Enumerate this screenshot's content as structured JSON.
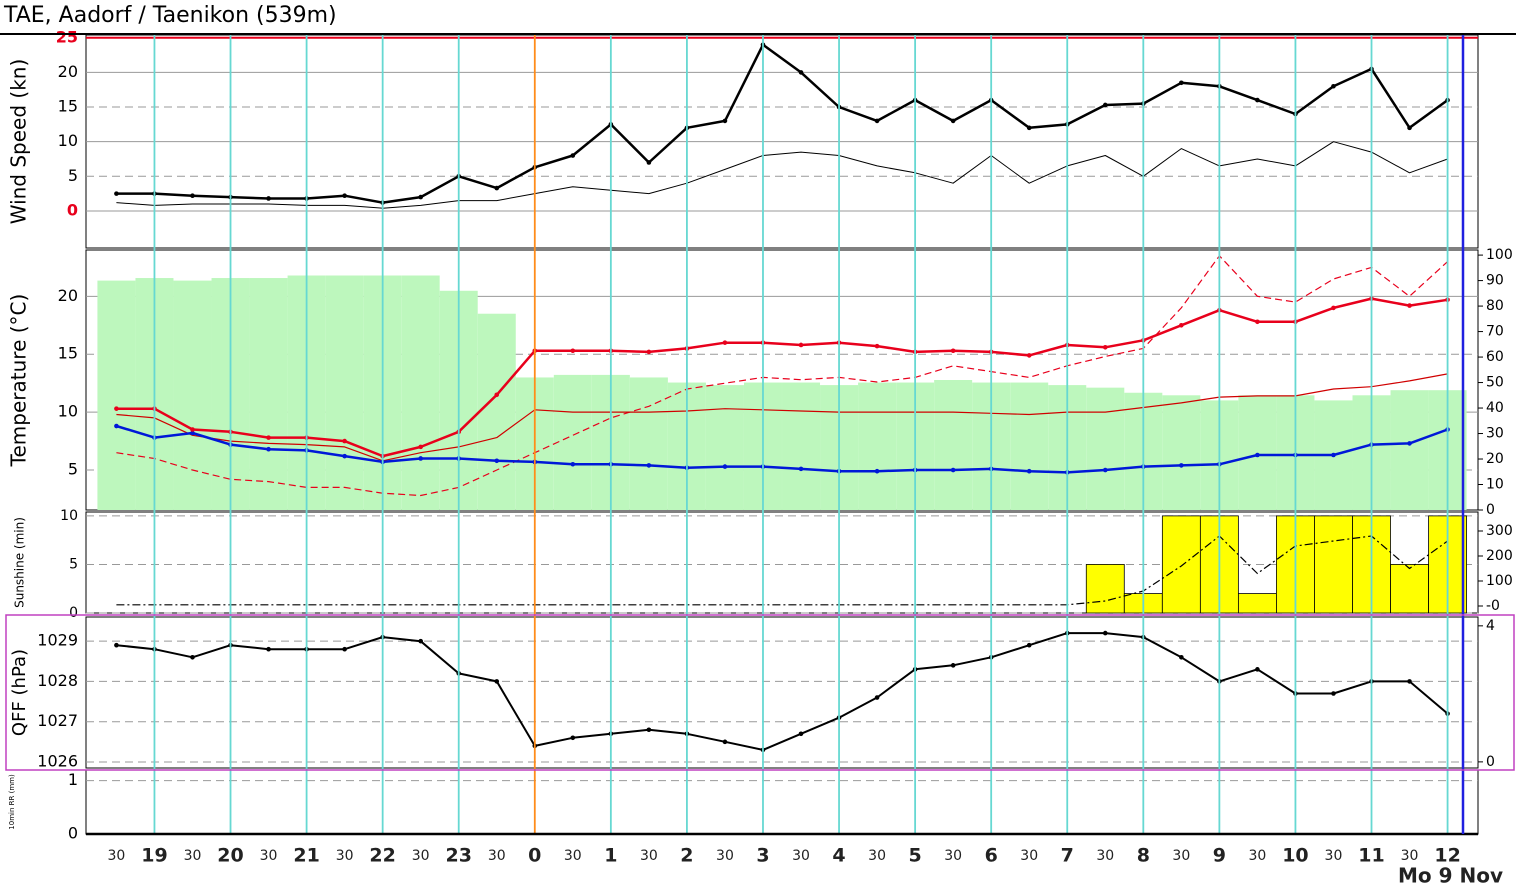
{
  "title": "TAE, Aadorf / Taenikon (539m)",
  "date_label": "Mo 9 Nov",
  "xlim": [
    -5.9,
    12.4
  ],
  "x": [
    -5.5,
    -5,
    -4.5,
    -4,
    -3.5,
    -3,
    -2.5,
    -2,
    -1.5,
    -1,
    -0.5,
    0,
    0.5,
    1,
    1.5,
    2,
    2.5,
    3,
    3.5,
    4,
    4.5,
    5,
    5.5,
    6,
    6.5,
    7,
    7.5,
    8,
    8.5,
    9,
    9.5,
    10,
    10.5,
    11,
    11.5,
    12
  ],
  "xticks": [
    {
      "value": -5.5,
      "label": "30"
    },
    {
      "value": -5,
      "label": "19"
    },
    {
      "value": -4.5,
      "label": "30"
    },
    {
      "value": -4,
      "label": "20"
    },
    {
      "value": -3.5,
      "label": "30"
    },
    {
      "value": -3,
      "label": "21"
    },
    {
      "value": -2.5,
      "label": "30"
    },
    {
      "value": -2,
      "label": "22"
    },
    {
      "value": -1.5,
      "label": "30"
    },
    {
      "value": -1,
      "label": "23"
    },
    {
      "value": -0.5,
      "label": "30"
    },
    0,
    {
      "value": 0.5,
      "label": "30"
    },
    1,
    {
      "value": 1.5,
      "label": "30"
    },
    2,
    {
      "value": 2.5,
      "label": "30"
    },
    3,
    {
      "value": 3.5,
      "label": "30"
    },
    4,
    {
      "value": 4.5,
      "label": "30"
    },
    5,
    {
      "value": 5.5,
      "label": "30"
    },
    6,
    {
      "value": 6.5,
      "label": "30"
    },
    7,
    {
      "value": 7.5,
      "label": "30"
    },
    8,
    {
      "value": 8.5,
      "label": "30"
    },
    9,
    {
      "value": 9.5,
      "label": "30"
    },
    10,
    {
      "value": 10.5,
      "label": "30"
    },
    11,
    {
      "value": 11.5,
      "label": "30"
    },
    12
  ],
  "chart_data": [
    {
      "type": "line",
      "ylabel": "Wind Speed (kn)",
      "ylim": [
        -5.35,
        25.4
      ],
      "yticks": [
        0,
        5,
        10,
        15,
        20,
        25
      ],
      "limit_color": "#e8001c",
      "series": [
        {
          "color": "#000000",
          "width": 2.5,
          "markers": true,
          "values": [
            2.5,
            2.5,
            2.2,
            2,
            1.8,
            1.8,
            2.2,
            1.2,
            2,
            5,
            3.3,
            6.3,
            8,
            12.5,
            7,
            12,
            13,
            24,
            20,
            15,
            13,
            16,
            13,
            16,
            12,
            12.5,
            15.3,
            15.5,
            18.5,
            18,
            16,
            14,
            18,
            20.5,
            12,
            16
          ]
        },
        {
          "color": "#000000",
          "width": 1,
          "values": [
            1.2,
            0.8,
            1,
            1,
            1,
            0.8,
            0.8,
            0.4,
            0.8,
            1.5,
            1.5,
            2.5,
            3.5,
            3,
            2.5,
            4,
            6,
            8,
            8.5,
            8,
            6.5,
            5.5,
            4,
            8,
            4,
            6.5,
            8,
            5,
            9,
            6.5,
            7.5,
            6.5,
            10,
            8.5,
            5.5,
            7.5
          ]
        }
      ]
    },
    {
      "type": "line",
      "ylabel": "Temperature (°C)",
      "ylim": [
        1.55,
        24
      ],
      "yticks": [
        5,
        10,
        15,
        20
      ],
      "y2lim": [
        0,
        102
      ],
      "y2ticks": [
        0,
        10,
        20,
        30,
        40,
        50,
        60,
        70,
        80,
        90,
        100
      ],
      "series": [
        {
          "type": "bar",
          "axis": "y2",
          "color": "#bdf7bd",
          "values": [
            90,
            91,
            90,
            91,
            91,
            92,
            92,
            92,
            92,
            86,
            77,
            52,
            53,
            53,
            52,
            50,
            49,
            50,
            50,
            49,
            50,
            50,
            51,
            50,
            50,
            49,
            48,
            46,
            45,
            43,
            45,
            45,
            43,
            45,
            47,
            47
          ]
        },
        {
          "color": "#e8001c",
          "width": 1.2,
          "dash": "7 4",
          "values": [
            6.5,
            6,
            5,
            4.2,
            4,
            3.5,
            3.5,
            3,
            2.8,
            3.5,
            5,
            6.5,
            8,
            9.5,
            10.5,
            12,
            12.5,
            13,
            12.8,
            13,
            12.6,
            13,
            14,
            13.5,
            13,
            14,
            14.8,
            15.5,
            19,
            23.5,
            20,
            19.5,
            21.5,
            22.5,
            20,
            23
          ]
        },
        {
          "color": "#d00000",
          "width": 1.2,
          "values": [
            9.8,
            9.5,
            8,
            7.5,
            7.3,
            7.2,
            7,
            5.8,
            6.5,
            7,
            7.8,
            10.2,
            10,
            10,
            10,
            10.1,
            10.3,
            10.2,
            10.1,
            10,
            10,
            10,
            10,
            9.9,
            9.8,
            10,
            10,
            10.4,
            10.8,
            11.3,
            11.4,
            11.4,
            12,
            12.2,
            12.7,
            13.3
          ]
        },
        {
          "color": "#0018d8",
          "width": 2.5,
          "markers": true,
          "values": [
            8.8,
            7.8,
            8.2,
            7.2,
            6.8,
            6.7,
            6.2,
            5.7,
            6,
            6,
            5.8,
            5.7,
            5.5,
            5.5,
            5.4,
            5.2,
            5.3,
            5.3,
            5.1,
            4.9,
            4.9,
            5,
            5,
            5.1,
            4.9,
            4.8,
            5,
            5.3,
            5.4,
            5.5,
            6.3,
            6.3,
            6.3,
            7.2,
            7.3,
            8.5
          ]
        },
        {
          "color": "#e8001c",
          "width": 2.5,
          "markers": true,
          "values": [
            10.3,
            10.3,
            8.5,
            8.3,
            7.8,
            7.8,
            7.5,
            6.2,
            7,
            8.3,
            11.5,
            15.3,
            15.3,
            15.3,
            15.2,
            15.5,
            16,
            16,
            15.8,
            16,
            15.7,
            15.2,
            15.3,
            15.2,
            14.9,
            15.8,
            15.6,
            16.2,
            17.5,
            18.8,
            17.8,
            17.8,
            19,
            19.8,
            19.2,
            19.7
          ]
        }
      ]
    },
    {
      "type": "bar",
      "ylabel": "Sunshine (min)",
      "ylim": [
        0,
        10.4
      ],
      "yticks": [
        0,
        5,
        10
      ],
      "y2lim": [
        -28,
        376
      ],
      "y2ticks": [
        {
          "value": 0,
          "label": "-0"
        },
        100,
        200,
        300
      ],
      "series": [
        {
          "type": "bar",
          "color": "#ffff00",
          "values": [
            0,
            0,
            0,
            0,
            0,
            0,
            0,
            0,
            0,
            0,
            0,
            0,
            0,
            0,
            0,
            0,
            0,
            0,
            0,
            0,
            0,
            0,
            0,
            0,
            0,
            0,
            5,
            2,
            10,
            10,
            2,
            10,
            10,
            10,
            5,
            10
          ]
        },
        {
          "type": "line",
          "axis": "y2",
          "color": "#000000",
          "width": 1.2,
          "dash": "8 3 2 3",
          "values": [
            5,
            5,
            5,
            5,
            5,
            5,
            5,
            5,
            5,
            5,
            5,
            5,
            5,
            5,
            5,
            5,
            5,
            5,
            5,
            5,
            5,
            5,
            5,
            5,
            5,
            5,
            20,
            60,
            160,
            280,
            130,
            240,
            260,
            280,
            150,
            260
          ]
        }
      ]
    },
    {
      "type": "line",
      "ylabel": "QFF (hPa)",
      "ylim": [
        1025.85,
        1029.6
      ],
      "yticks": [
        1026,
        1027,
        1028,
        1029
      ],
      "y2lim": [
        -0.18,
        4.26
      ],
      "y2ticks": [
        0,
        4
      ],
      "series": [
        {
          "color": "#000000",
          "width": 2,
          "markers": true,
          "values": [
            1028.9,
            1028.8,
            1028.6,
            1028.9,
            1028.8,
            1028.8,
            1028.8,
            1029.1,
            1029,
            1028.2,
            1028,
            1026.4,
            1026.6,
            1026.7,
            1026.8,
            1026.7,
            1026.5,
            1026.3,
            1026.7,
            1027.1,
            1027.6,
            1028.3,
            1028.4,
            1028.6,
            1028.9,
            1029.2,
            1029.2,
            1029.1,
            1028.6,
            1028,
            1028.3,
            1027.7,
            1027.7,
            1028,
            1028,
            1027.2
          ]
        }
      ]
    },
    {
      "type": "bar",
      "ylabel": "10min RR (mm)",
      "ylim": [
        0,
        1.2
      ],
      "yticks": [
        0,
        1
      ],
      "series": [
        {
          "type": "bar",
          "color": "#3060ff",
          "values": [
            0,
            0,
            0,
            0,
            0,
            0,
            0,
            0,
            0,
            0,
            0,
            0,
            0,
            0,
            0,
            0,
            0,
            0,
            0,
            0,
            0,
            0,
            0,
            0,
            0,
            0,
            0,
            0,
            0,
            0,
            0,
            0,
            0,
            0,
            0,
            0
          ]
        }
      ]
    }
  ]
}
